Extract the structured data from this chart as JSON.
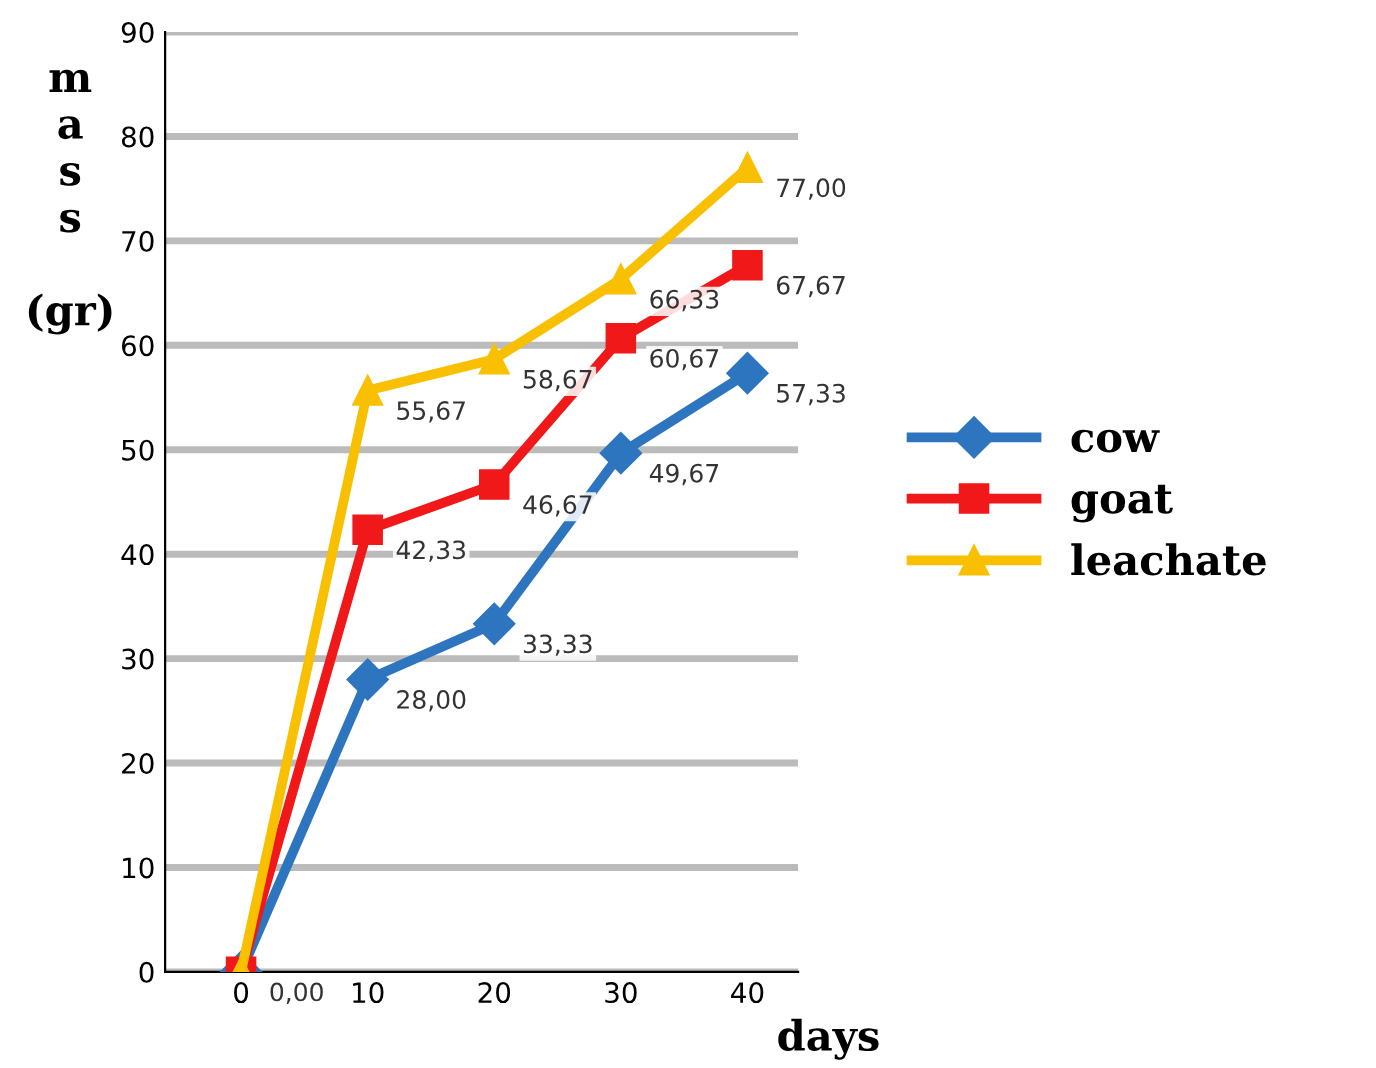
{
  "chart_data": {
    "type": "line",
    "xlabel": "days",
    "ylabel": "m\na\ns\ns\n\n(gr)",
    "categories": [
      "0",
      "10",
      "20",
      "30",
      "40"
    ],
    "series": [
      {
        "name": "cow",
        "color": "#2e75c0",
        "marker": "diamond",
        "values": [
          0,
          28.0,
          33.33,
          49.67,
          57.33
        ],
        "value_labels": [
          "0,00",
          "28,00",
          "33,33",
          "49,67",
          "57,33"
        ]
      },
      {
        "name": "goat",
        "color": "#f01818",
        "marker": "square",
        "values": [
          0,
          42.33,
          46.67,
          60.67,
          67.67
        ],
        "value_labels": [
          null,
          "42,33",
          "46,67",
          "60,67",
          "67,67"
        ]
      },
      {
        "name": "leachate",
        "color": "#f8c000",
        "marker": "triangle",
        "values": [
          0,
          55.67,
          58.67,
          66.33,
          77.0
        ],
        "value_labels": [
          null,
          "55,67",
          "58,67",
          "66,33",
          "77,00"
        ]
      }
    ],
    "ylim": [
      0,
      90
    ],
    "yticks": [
      0,
      10,
      20,
      30,
      40,
      50,
      60,
      70,
      80,
      90
    ],
    "grid": "y",
    "legend": "right",
    "line_style": "solid"
  }
}
